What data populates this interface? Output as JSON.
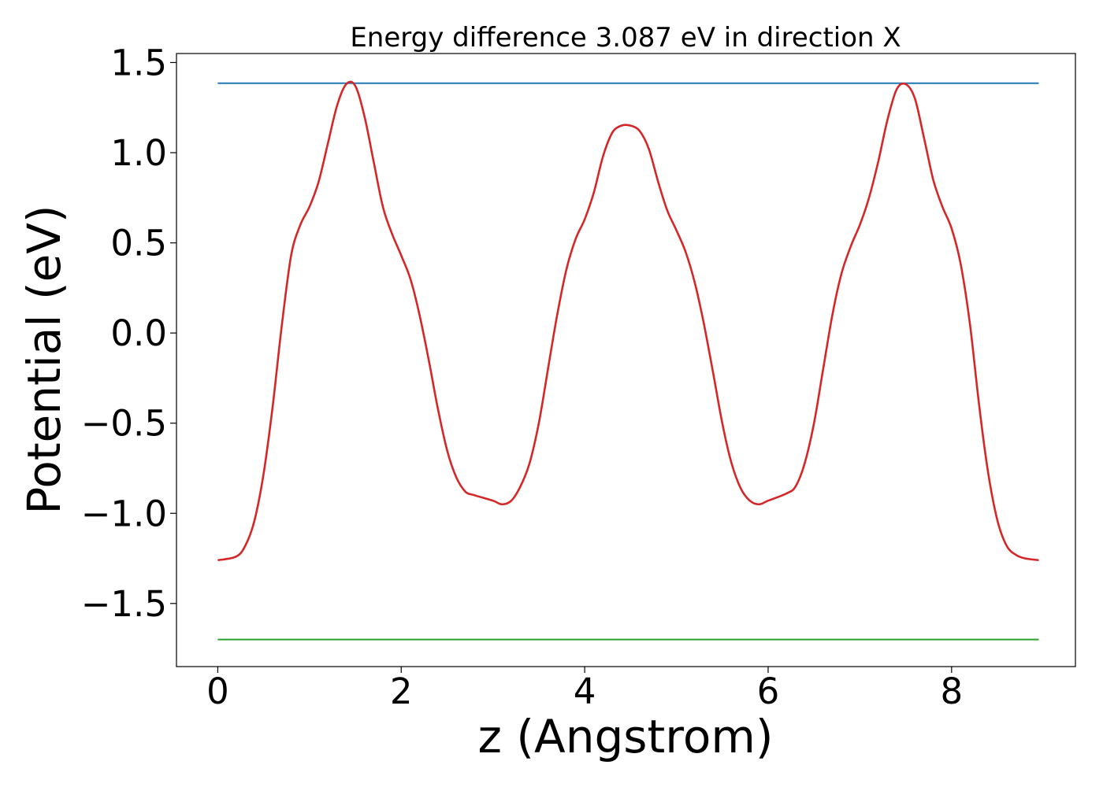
{
  "chart_data": {
    "type": "line",
    "title": "Energy difference 3.087 eV in direction X",
    "xlabel": "z (Angstrom)",
    "ylabel": "Potential (eV)",
    "xlim": [
      -0.45,
      9.35
    ],
    "ylim": [
      -1.85,
      1.55
    ],
    "xticks": [
      0,
      2,
      4,
      6,
      8
    ],
    "xtick_labels": [
      "0",
      "2",
      "4",
      "6",
      "8"
    ],
    "yticks": [
      -1.5,
      -1.0,
      -0.5,
      0.0,
      0.5,
      1.0,
      1.5
    ],
    "ytick_labels": [
      "−1.5",
      "−1.0",
      "−0.5",
      "0.0",
      "0.5",
      "1.0",
      "1.5"
    ],
    "grid": false,
    "legend": "none",
    "series": [
      {
        "color": "#1f77b4",
        "x": [
          0,
          8.95
        ],
        "y": [
          1.385,
          1.385
        ]
      },
      {
        "color": "#d62728",
        "x": [
          0,
          0.2,
          0.3,
          0.4,
          0.5,
          0.6,
          0.7,
          0.8,
          0.9,
          1.0,
          1.1,
          1.2,
          1.3,
          1.4,
          1.5,
          1.6,
          1.7,
          1.8,
          1.9,
          2.0,
          2.1,
          2.2,
          2.3,
          2.4,
          2.5,
          2.6,
          2.7,
          2.8,
          3.0,
          3.1,
          3.2,
          3.3,
          3.4,
          3.5,
          3.6,
          3.7,
          3.8,
          3.9,
          4.0,
          4.1,
          4.2,
          4.3,
          4.4,
          4.5,
          4.6,
          4.7,
          4.8,
          4.9,
          5.0,
          5.1,
          5.2,
          5.3,
          5.4,
          5.5,
          5.6,
          5.7,
          5.8,
          5.9,
          6.0,
          6.2,
          6.3,
          6.4,
          6.5,
          6.6,
          6.7,
          6.8,
          6.9,
          7.0,
          7.1,
          7.2,
          7.3,
          7.4,
          7.5,
          7.6,
          7.7,
          7.8,
          7.9,
          8.0,
          8.1,
          8.2,
          8.3,
          8.4,
          8.5,
          8.6,
          8.7,
          8.8,
          8.95
        ],
        "y": [
          -1.26,
          -1.24,
          -1.18,
          -1.04,
          -0.78,
          -0.4,
          0.05,
          0.43,
          0.6,
          0.7,
          0.84,
          1.05,
          1.26,
          1.38,
          1.37,
          1.2,
          0.95,
          0.7,
          0.55,
          0.43,
          0.3,
          0.1,
          -0.15,
          -0.42,
          -0.65,
          -0.8,
          -0.88,
          -0.9,
          -0.93,
          -0.95,
          -0.93,
          -0.85,
          -0.72,
          -0.5,
          -0.2,
          0.1,
          0.35,
          0.52,
          0.63,
          0.78,
          0.98,
          1.11,
          1.15,
          1.15,
          1.12,
          1.02,
          0.84,
          0.68,
          0.57,
          0.45,
          0.28,
          0.05,
          -0.22,
          -0.5,
          -0.72,
          -0.86,
          -0.93,
          -0.95,
          -0.93,
          -0.89,
          -0.85,
          -0.72,
          -0.5,
          -0.2,
          0.1,
          0.33,
          0.48,
          0.6,
          0.75,
          0.95,
          1.18,
          1.35,
          1.38,
          1.3,
          1.08,
          0.85,
          0.7,
          0.58,
          0.38,
          0.05,
          -0.4,
          -0.78,
          -1.04,
          -1.18,
          -1.23,
          -1.25,
          -1.26
        ]
      },
      {
        "color": "#2ca02c",
        "x": [
          0,
          8.95
        ],
        "y": [
          -1.7,
          -1.7
        ]
      }
    ]
  }
}
